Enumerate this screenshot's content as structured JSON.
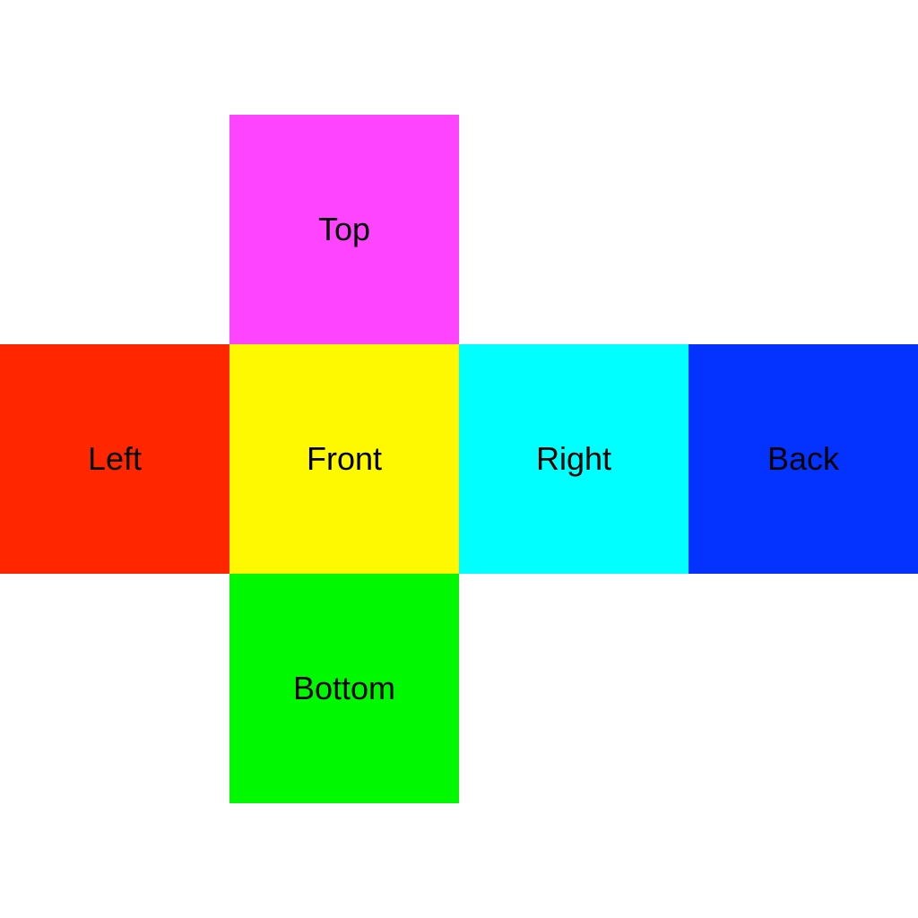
{
  "cube_net": {
    "faces": [
      {
        "id": "top",
        "label": "Top",
        "color": "#ff44ff"
      },
      {
        "id": "left",
        "label": "Left",
        "color": "#ff2600"
      },
      {
        "id": "front",
        "label": "Front",
        "color": "#fff900"
      },
      {
        "id": "right",
        "label": "Right",
        "color": "#00ffff"
      },
      {
        "id": "back",
        "label": "Back",
        "color": "#0433ff"
      },
      {
        "id": "bottom",
        "label": "Bottom",
        "color": "#00f900"
      }
    ]
  }
}
